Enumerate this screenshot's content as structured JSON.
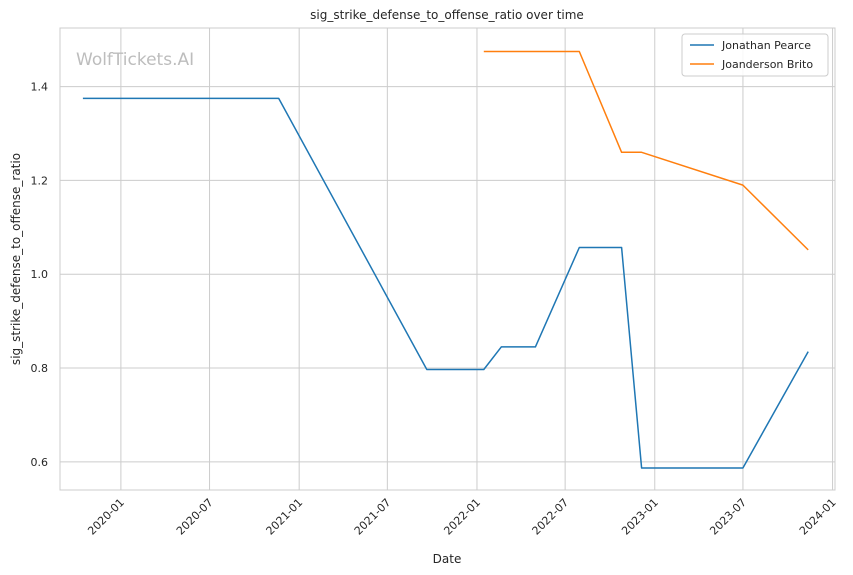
{
  "chart_data": {
    "type": "line",
    "title": "sig_strike_defense_to_offense_ratio over time",
    "xlabel": "Date",
    "ylabel": "sig_strike_defense_to_offense_ratio",
    "watermark": "WolfTickets.AI",
    "xlim": [
      "2019-08-29",
      "2024-01-06"
    ],
    "ylim": [
      0.54,
      1.525
    ],
    "x_ticks": [
      "2020-01",
      "2020-07",
      "2021-01",
      "2021-07",
      "2022-01",
      "2022-07",
      "2023-01",
      "2023-07",
      "2024-01"
    ],
    "y_ticks": [
      "0.6",
      "0.8",
      "1.0",
      "1.2",
      "1.4"
    ],
    "grid": true,
    "legend_position": "top-right",
    "series": [
      {
        "name": "Jonathan Pearce",
        "color": "#1f77b4",
        "x": [
          "2019-10-15",
          "2020-11-20",
          "2021-09-20",
          "2022-01-15",
          "2022-02-20",
          "2022-05-01",
          "2022-07-30",
          "2022-10-25",
          "2022-12-05",
          "2023-07-01",
          "2023-11-12"
        ],
        "y": [
          1.375,
          1.375,
          0.797,
          0.797,
          0.845,
          0.845,
          1.057,
          1.057,
          0.587,
          0.587,
          0.835
        ]
      },
      {
        "name": "Joanderson Brito",
        "color": "#ff7f0e",
        "x": [
          "2022-01-15",
          "2022-07-30",
          "2022-10-25",
          "2022-12-05",
          "2023-07-01",
          "2023-11-12"
        ],
        "y": [
          1.475,
          1.475,
          1.26,
          1.26,
          1.19,
          1.052
        ]
      }
    ]
  }
}
